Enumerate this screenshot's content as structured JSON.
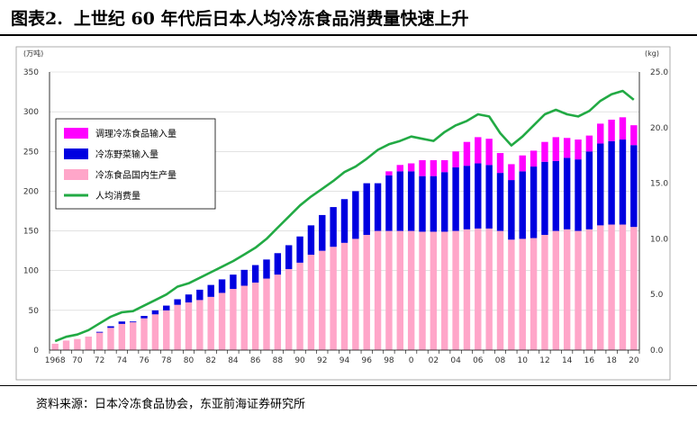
{
  "figure": {
    "label": "图表2.",
    "title": "上世纪 60 年代后日本人均冷冻食品消费量快速上升",
    "source": "资料来源：日本冷冻食品协会，东亚前海证券研究所"
  },
  "colors": {
    "prepared_import": "#ff00ff",
    "vegetable_import": "#0000e0",
    "domestic": "#ffa6c9",
    "per_capita": "#22aa44"
  },
  "chart_data": {
    "type": "bar",
    "stacked": true,
    "years": [
      1968,
      1969,
      1970,
      1971,
      1972,
      1973,
      1974,
      1975,
      1976,
      1977,
      1978,
      1979,
      1980,
      1981,
      1982,
      1983,
      1984,
      1985,
      1986,
      1987,
      1988,
      1989,
      1990,
      1991,
      1992,
      1993,
      1994,
      1995,
      1996,
      1997,
      1998,
      1999,
      2000,
      2001,
      2002,
      2003,
      2004,
      2005,
      2006,
      2007,
      2008,
      2009,
      2010,
      2011,
      2012,
      2013,
      2014,
      2015,
      2016,
      2017,
      2018,
      2019,
      2020
    ],
    "x_tick_labels": [
      "1968",
      "70",
      "72",
      "74",
      "76",
      "78",
      "80",
      "82",
      "84",
      "86",
      "88",
      "90",
      "92",
      "94",
      "96",
      "98",
      "0",
      "02",
      "04",
      "06",
      "08",
      "10",
      "12",
      "14",
      "16",
      "18",
      "20"
    ],
    "x_tick_years": [
      1968,
      1970,
      1972,
      1974,
      1976,
      1978,
      1980,
      1982,
      1984,
      1986,
      1988,
      1990,
      1992,
      1994,
      1996,
      1998,
      2000,
      2002,
      2004,
      2006,
      2008,
      2010,
      2012,
      2014,
      2016,
      2018,
      2020
    ],
    "y_left": {
      "unit": "(万吨)",
      "min": 0,
      "max": 350,
      "ticks": [
        0,
        50,
        100,
        150,
        200,
        250,
        300,
        350
      ]
    },
    "y_right": {
      "unit": "(kg)",
      "min": 0,
      "max": 25,
      "ticks": [
        "0.0",
        "5.0",
        "10.0",
        "15.0",
        "20.0",
        "25.0"
      ]
    },
    "legend": [
      "调理冷冻食品输入量",
      "冷冻野菜输入量",
      "冷冻食品国内生产量",
      "人均消费量"
    ],
    "series": [
      {
        "name": "冷冻食品国内生产量",
        "values": [
          8,
          12,
          14,
          17,
          22,
          28,
          33,
          35,
          40,
          45,
          50,
          57,
          60,
          63,
          67,
          72,
          77,
          81,
          85,
          90,
          95,
          102,
          110,
          120,
          125,
          130,
          135,
          140,
          145,
          150,
          150,
          150,
          150,
          149,
          149,
          149,
          150,
          152,
          153,
          153,
          150,
          139,
          140,
          141,
          145,
          150,
          152,
          150,
          152,
          157,
          158,
          158,
          155
        ]
      },
      {
        "name": "冷冻野菜输入量",
        "values": [
          0,
          0,
          0,
          0,
          1,
          2,
          3,
          1,
          3,
          5,
          6,
          7,
          10,
          13,
          15,
          17,
          18,
          20,
          22,
          24,
          27,
          30,
          33,
          37,
          45,
          50,
          55,
          60,
          65,
          60,
          70,
          75,
          75,
          70,
          70,
          75,
          80,
          80,
          82,
          80,
          73,
          75,
          85,
          90,
          92,
          88,
          90,
          90,
          98,
          103,
          105,
          107,
          103
        ]
      },
      {
        "name": "调理冷冻食品输入量",
        "values": [
          0,
          0,
          0,
          0,
          0,
          0,
          0,
          0,
          0,
          0,
          0,
          0,
          0,
          0,
          0,
          0,
          0,
          0,
          0,
          0,
          0,
          0,
          0,
          0,
          0,
          0,
          0,
          0,
          0,
          0,
          5,
          8,
          10,
          20,
          20,
          15,
          20,
          30,
          33,
          33,
          25,
          20,
          20,
          20,
          25,
          30,
          25,
          25,
          20,
          25,
          27,
          28,
          25
        ]
      },
      {
        "name": "人均消费量",
        "axis": "right",
        "values": [
          0.8,
          1.2,
          1.4,
          1.8,
          2.4,
          3.0,
          3.4,
          3.5,
          4.0,
          4.5,
          5.0,
          5.7,
          6.0,
          6.5,
          7.0,
          7.5,
          8.0,
          8.6,
          9.2,
          10.0,
          11.0,
          12.0,
          13.0,
          13.8,
          14.5,
          15.2,
          16.0,
          16.5,
          17.2,
          18.0,
          18.5,
          18.8,
          19.2,
          19.0,
          18.8,
          19.6,
          20.2,
          20.6,
          21.2,
          21.0,
          19.5,
          18.4,
          19.2,
          20.2,
          21.2,
          21.6,
          21.2,
          21.0,
          21.5,
          22.4,
          23.0,
          23.3,
          22.5
        ]
      }
    ]
  }
}
